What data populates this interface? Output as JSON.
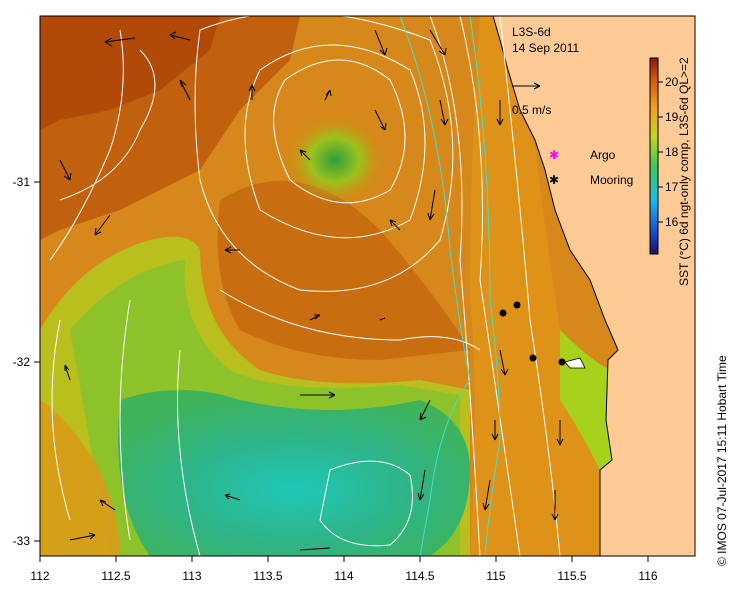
{
  "map": {
    "product": "L3S-6d",
    "date": "14 Sep 2011",
    "scale_label": "0.5 m/s",
    "colorbar_label": "SST (°C) 6d ngt-only comp, L3S-6d QL>=2",
    "colorbar_ticks": [
      "16",
      "17",
      "18",
      "19",
      "20"
    ],
    "legend": [
      {
        "label": "Argo",
        "symbol": "magenta-star-icon",
        "color": "#ff00ff"
      },
      {
        "label": "Mooring",
        "symbol": "black-star-icon",
        "color": "#000000"
      }
    ],
    "lon_ticks": [
      "112",
      "112.5",
      "113",
      "113.5",
      "114",
      "114.5",
      "115",
      "115.5",
      "116"
    ],
    "lat_ticks": [
      "-31",
      "-32",
      "-33"
    ],
    "credit": "© IMOS 07-Jul-2017 15:11 Hobart Time",
    "colors": {
      "land": "#fecb96",
      "coast_line": "#000000",
      "isobath": "#40e0d0",
      "contour": "#ffffff"
    }
  }
}
